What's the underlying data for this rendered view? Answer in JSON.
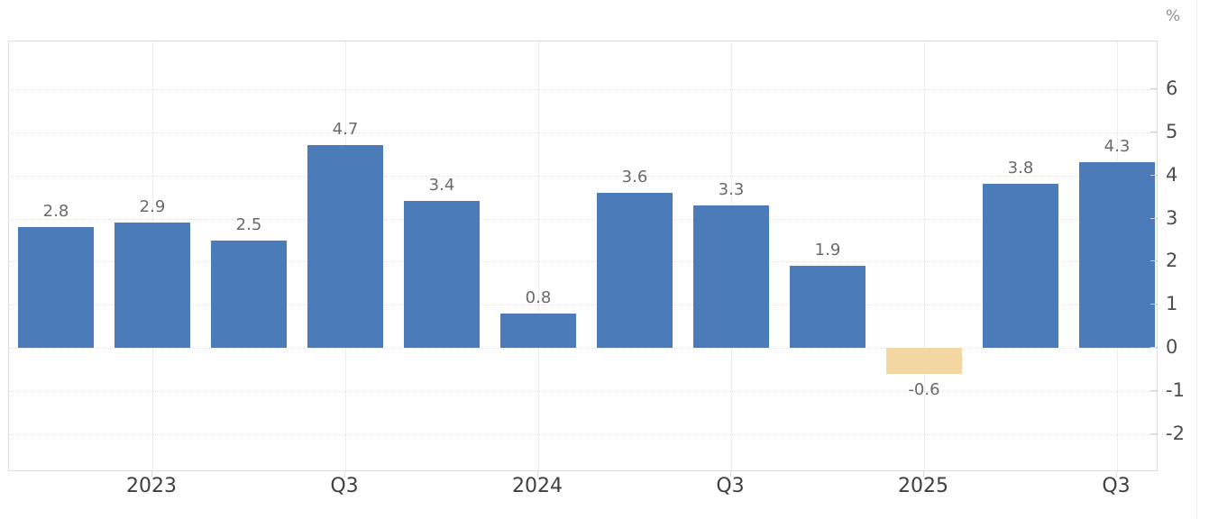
{
  "chart_data": {
    "type": "bar",
    "title": "",
    "y_axis_unit": "%",
    "values": [
      2.8,
      2.9,
      2.5,
      4.7,
      3.4,
      0.8,
      3.6,
      3.3,
      1.9,
      -0.6,
      3.8,
      4.3
    ],
    "value_labels": [
      "2.8",
      "2.9",
      "2.5",
      "4.7",
      "3.4",
      "0.8",
      "3.6",
      "3.3",
      "1.9",
      "-0.6",
      "3.8",
      "4.3"
    ],
    "x_ticks": [
      {
        "label": "2023",
        "bar_index": 1
      },
      {
        "label": "Q3",
        "bar_index": 3
      },
      {
        "label": "2024",
        "bar_index": 5
      },
      {
        "label": "Q3",
        "bar_index": 7
      },
      {
        "label": "2025",
        "bar_index": 9
      },
      {
        "label": "Q3",
        "bar_index": 11
      }
    ],
    "y_ticks": [
      6,
      5,
      4,
      3,
      2,
      1,
      0,
      -1,
      -2
    ],
    "ylim": [
      -2.89,
      7.11
    ],
    "grid": true,
    "legend_position": "none",
    "colors": {
      "bar_positive": "#4c7bb9",
      "bar_negative": "#f2d7a2",
      "value_label": "#6a6a6a",
      "x_label": "#3f3f3f",
      "y_label": "#4d4d4d",
      "unit_label": "#8f8f8f",
      "grid_horizontal": "#e2e2e2",
      "grid_vertical": "#ececec",
      "plot_border": "#dcdcdc",
      "tick": "#cfcfcf"
    }
  }
}
